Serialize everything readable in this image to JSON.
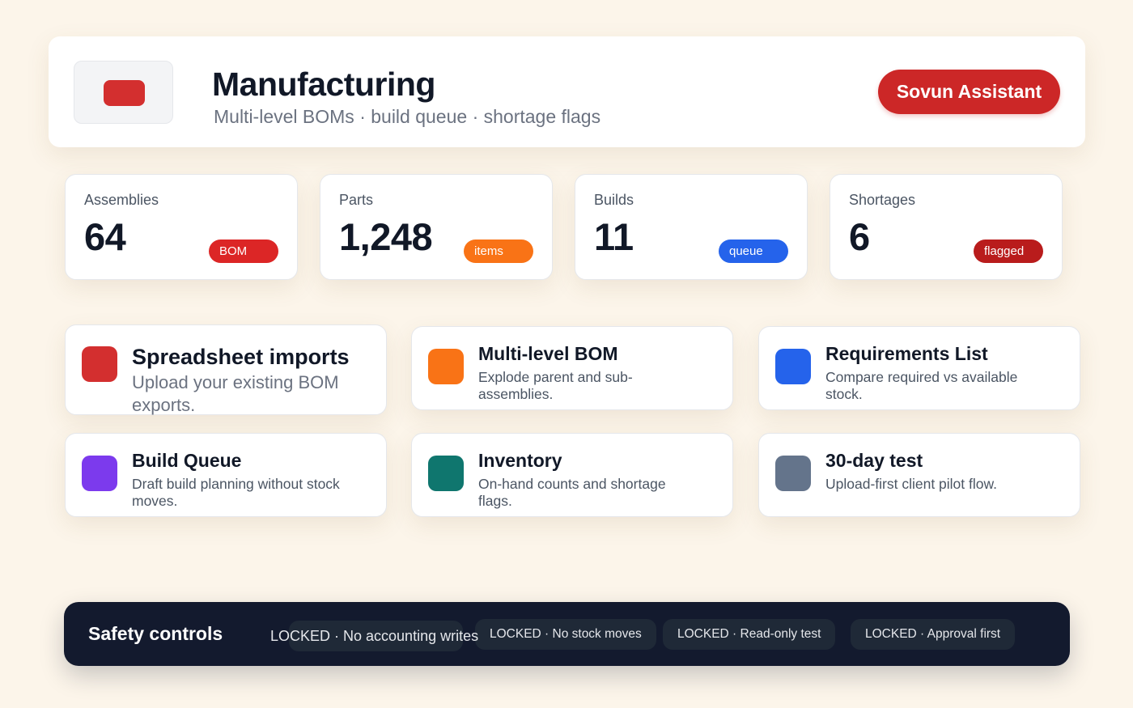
{
  "header": {
    "title": "Manufacturing",
    "subtitle": "Multi-level BOMs · build queue · shortage flags",
    "assistant_button": "Sovun Assistant"
  },
  "stats": [
    {
      "label": "Assemblies",
      "value": "64",
      "badge": "BOM",
      "badge_color": "#dc2626"
    },
    {
      "label": "Parts",
      "value": "1,248",
      "badge": "items",
      "badge_color": "#f97316"
    },
    {
      "label": "Builds",
      "value": "11",
      "badge": "queue",
      "badge_color": "#2563eb"
    },
    {
      "label": "Shortages",
      "value": "6",
      "badge": "flagged",
      "badge_color": "#b91c1c"
    }
  ],
  "features": [
    {
      "title": "Spreadsheet imports",
      "description": "Upload your existing BOM exports.",
      "color": "#d32f2f"
    },
    {
      "title": "Multi-level BOM",
      "description": "Explode parent and sub-assemblies.",
      "color": "#f97316"
    },
    {
      "title": "Requirements List",
      "description": "Compare required vs available stock.",
      "color": "#2563eb"
    },
    {
      "title": "Build Queue",
      "description": "Draft build planning without stock moves.",
      "color": "#7c3aed"
    },
    {
      "title": "Inventory",
      "description": "On-hand counts and shortage flags.",
      "color": "#0f766e"
    },
    {
      "title": "30-day test",
      "description": "Upload-first client pilot flow.",
      "color": "#64748b"
    }
  ],
  "safety": {
    "title": "Safety controls",
    "locks": [
      "LOCKED · No accounting writes",
      "LOCKED · No stock moves",
      "LOCKED · Read-only test",
      "LOCKED · Approval first"
    ]
  }
}
